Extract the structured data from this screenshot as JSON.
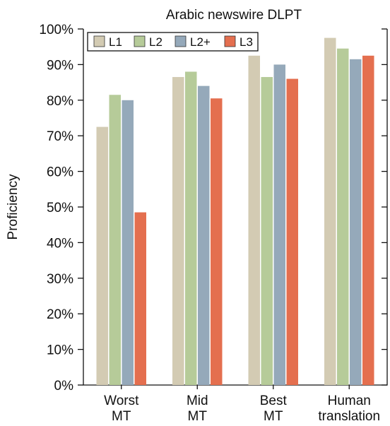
{
  "chart_data": {
    "type": "bar",
    "title": "Arabic newswire DLPT",
    "ylabel": "Proficiency",
    "xlabel": "",
    "categories": [
      [
        "Worst",
        "MT"
      ],
      [
        "Mid",
        "MT"
      ],
      [
        "Best",
        "MT"
      ],
      [
        "Human",
        "translation"
      ]
    ],
    "series": [
      {
        "name": "L1",
        "color": "#d3cbb3",
        "values": [
          72.5,
          86.5,
          92.5,
          97.5
        ]
      },
      {
        "name": "L2",
        "color": "#b6cb99",
        "values": [
          81.5,
          88.0,
          86.5,
          94.5
        ]
      },
      {
        "name": "L2+",
        "color": "#95a9ba",
        "values": [
          80.0,
          84.0,
          90.0,
          91.5
        ]
      },
      {
        "name": "L3",
        "color": "#e46f4f",
        "values": [
          48.5,
          80.5,
          86.0,
          92.5
        ]
      }
    ],
    "ylim": [
      0,
      100
    ],
    "yticks": [
      0,
      10,
      20,
      30,
      40,
      50,
      60,
      70,
      80,
      90,
      100
    ],
    "ytick_labels": [
      "0%",
      "10%",
      "20%",
      "30%",
      "40%",
      "50%",
      "60%",
      "70%",
      "80%",
      "90%",
      "100%"
    ],
    "grid": false,
    "legend_position": "top-left"
  }
}
